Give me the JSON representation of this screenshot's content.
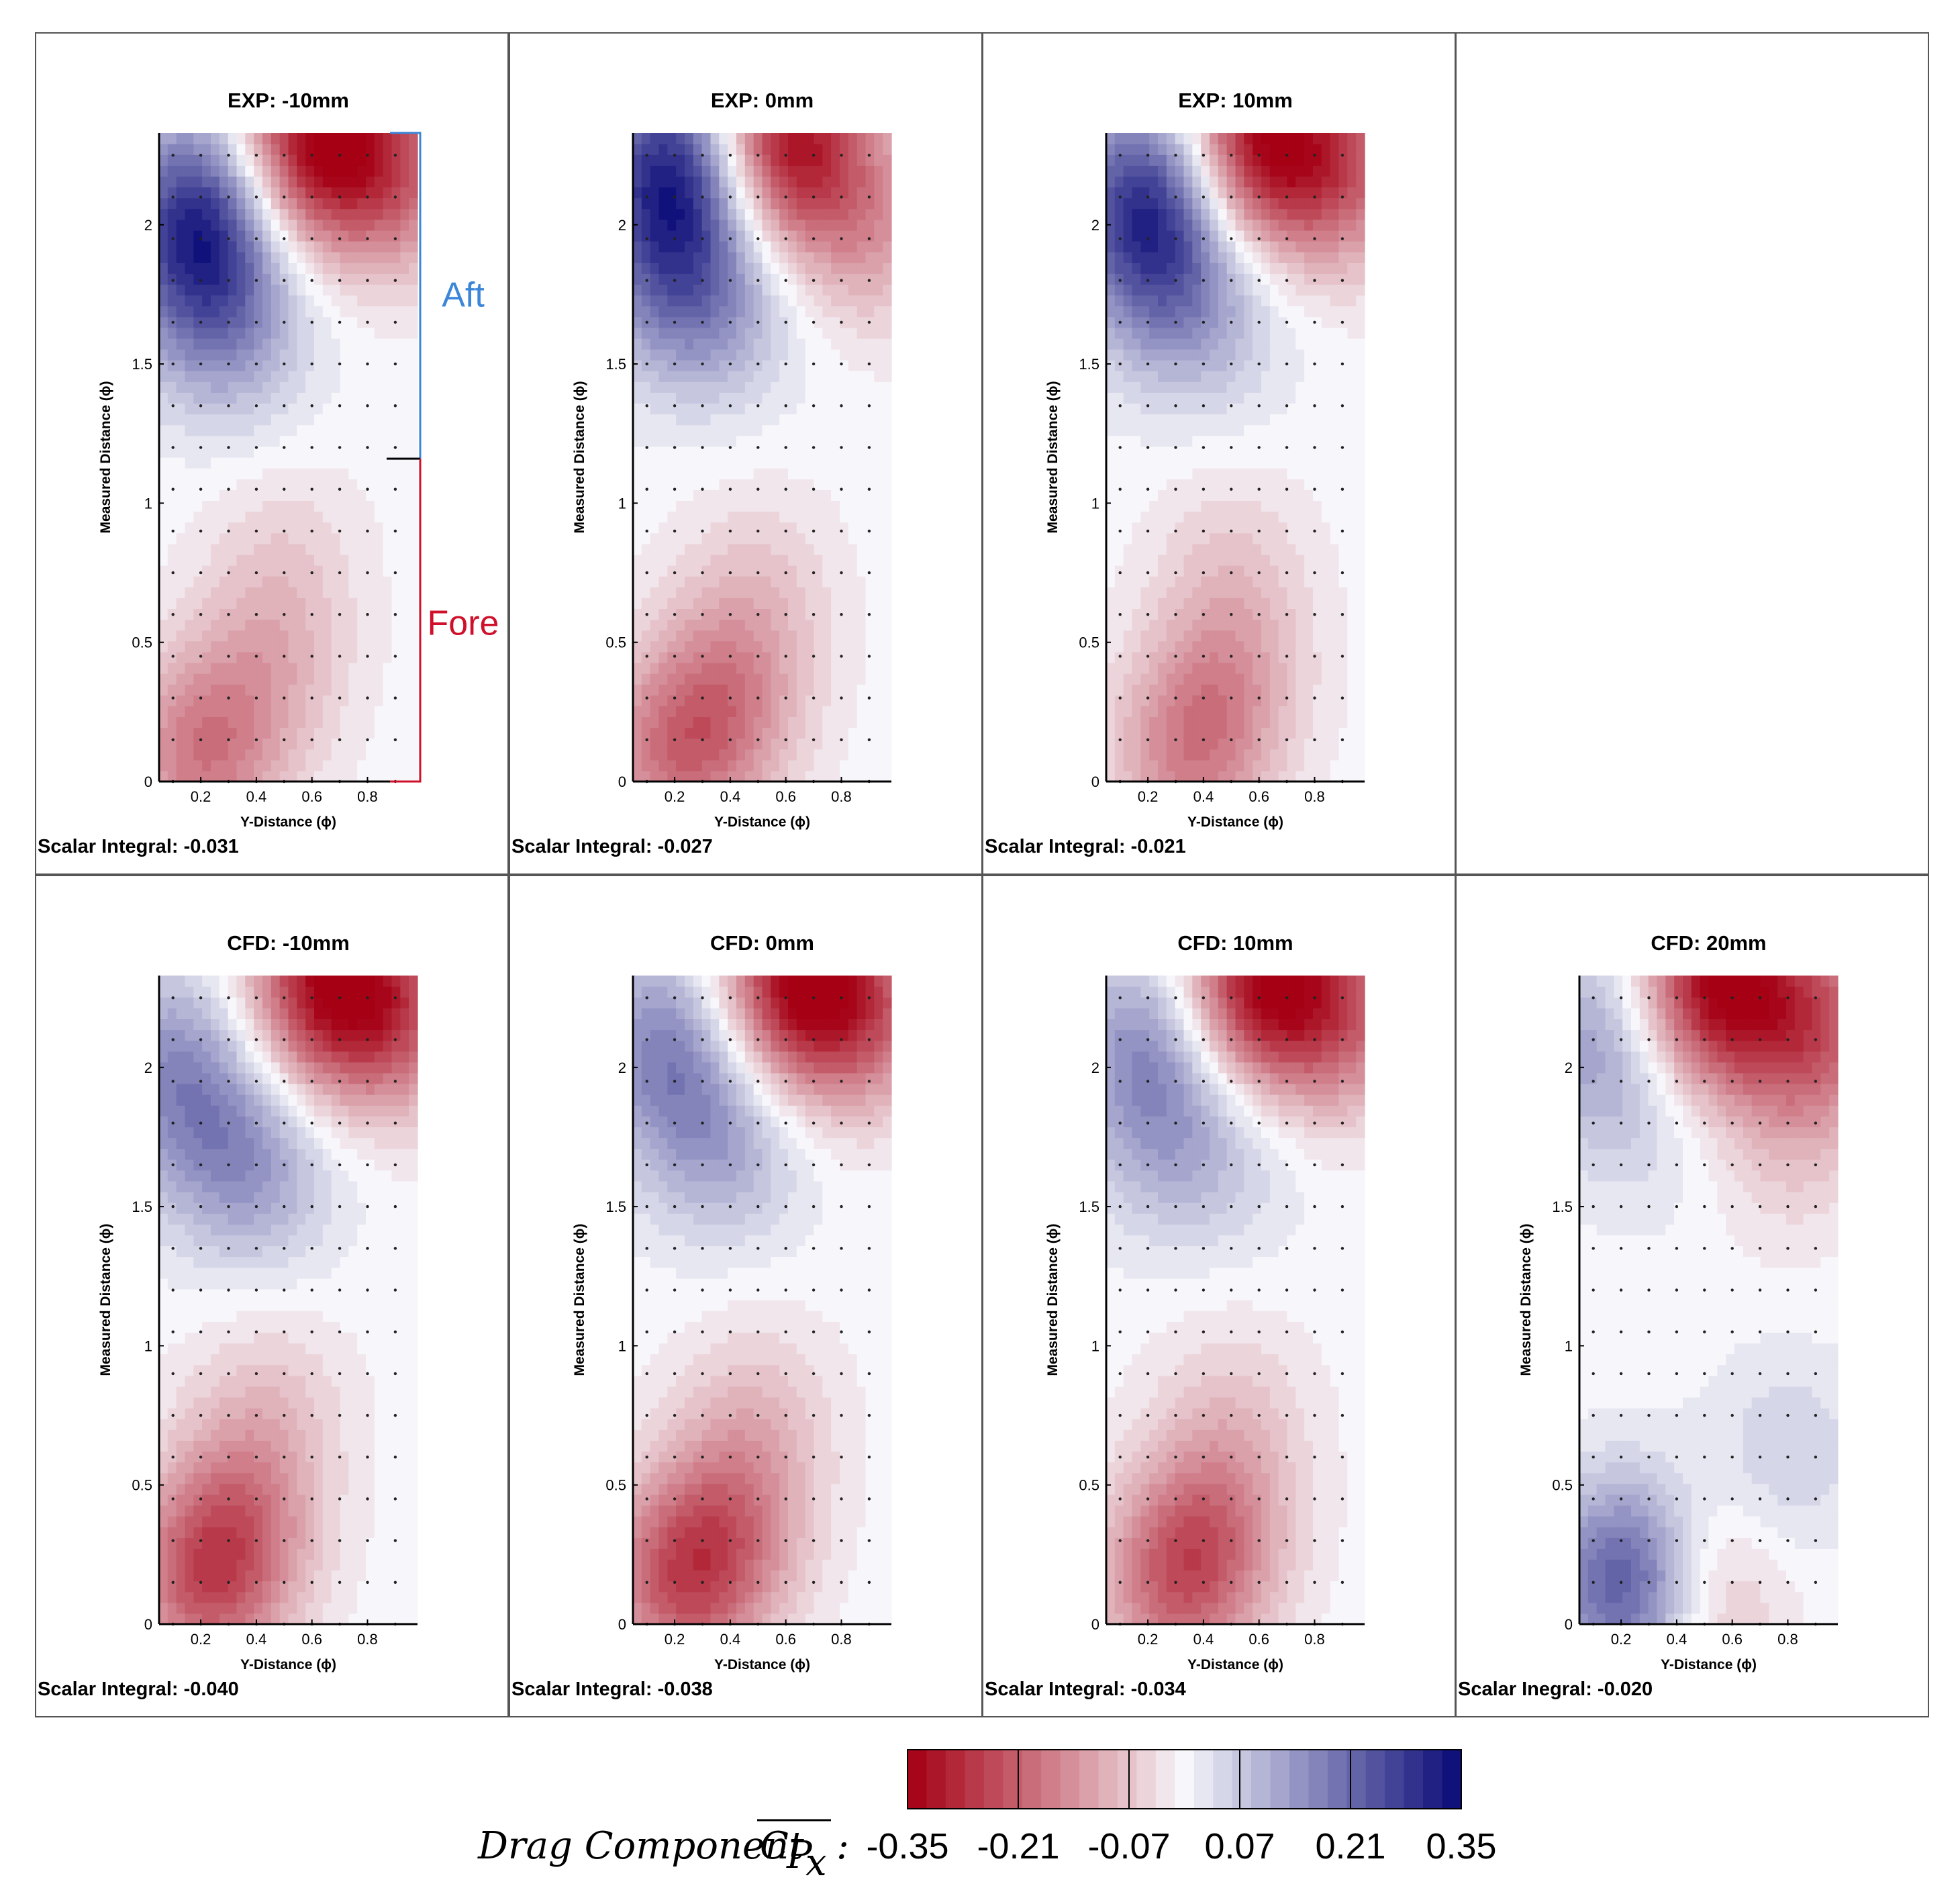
{
  "colors": {
    "negative_max": "#a50014",
    "neutral": "#f7f7fb",
    "positive_max": "#0c0c78",
    "aft_bracket": "#3b86d8",
    "fore_bracket": "#d0102a",
    "frame": "#555555"
  },
  "colorbar": {
    "label": "Drag Component",
    "symbol": "C",
    "symbol_sub": "P",
    "symbol_subsub": "x",
    "colon": ":",
    "ticks": [
      "-0.35",
      "-0.21",
      "-0.07",
      "0.07",
      "0.21",
      "0.35"
    ],
    "range": [
      -0.35,
      0.35
    ]
  },
  "annotations": {
    "aft_label": "Aft",
    "fore_label": "Fore"
  },
  "chart_data": [
    {
      "type": "heatmap",
      "title": "EXP: -10mm",
      "xlabel": "Y-Distance (ϕ)",
      "ylabel": "Measured Distance (ϕ)",
      "x_ticks": [
        "0.2",
        "0.4",
        "0.6",
        "0.8"
      ],
      "y_ticks": [
        "0",
        "0.5",
        "1",
        "1.5",
        "2"
      ],
      "xlim": [
        0.05,
        0.98
      ],
      "ylim": [
        0,
        2.33
      ],
      "scalar_label": "Scalar Integral: -0.031",
      "features": [
        {
          "x": 0.2,
          "y": 2.05,
          "value": 0.26
        },
        {
          "x": 0.2,
          "y": 1.75,
          "value": 0.12
        },
        {
          "x": 0.35,
          "y": 1.6,
          "value": 0.07
        },
        {
          "x": 0.6,
          "y": 2.3,
          "value": -0.33
        },
        {
          "x": 0.9,
          "y": 2.2,
          "value": -0.18
        },
        {
          "x": 0.2,
          "y": 0.1,
          "value": -0.17
        },
        {
          "x": 0.45,
          "y": 0.4,
          "value": -0.08
        },
        {
          "x": 0.5,
          "y": 0.8,
          "value": -0.05
        }
      ]
    },
    {
      "type": "heatmap",
      "title": "EXP: 0mm",
      "xlabel": "Y-Distance (ϕ)",
      "ylabel": "Measured Distance (ϕ)",
      "x_ticks": [
        "0.2",
        "0.4",
        "0.6",
        "0.8"
      ],
      "y_ticks": [
        "0",
        "0.5",
        "1",
        "1.5",
        "2"
      ],
      "xlim": [
        0.05,
        0.98
      ],
      "ylim": [
        0,
        2.33
      ],
      "scalar_label": "Scalar Integral: -0.027",
      "features": [
        {
          "x": 0.2,
          "y": 2.2,
          "value": 0.3
        },
        {
          "x": 0.2,
          "y": 1.8,
          "value": 0.15
        },
        {
          "x": 0.4,
          "y": 1.7,
          "value": 0.07
        },
        {
          "x": 0.6,
          "y": 2.3,
          "value": -0.33
        },
        {
          "x": 0.9,
          "y": 2.0,
          "value": -0.12
        },
        {
          "x": 0.2,
          "y": 0.1,
          "value": -0.16
        },
        {
          "x": 0.4,
          "y": 0.3,
          "value": -0.12
        },
        {
          "x": 0.5,
          "y": 0.7,
          "value": -0.06
        }
      ]
    },
    {
      "type": "heatmap",
      "title": "EXP: 10mm",
      "xlabel": "Y-Distance (ϕ)",
      "ylabel": "Measured Distance (ϕ)",
      "x_ticks": [
        "0.2",
        "0.4",
        "0.6",
        "0.8"
      ],
      "y_ticks": [
        "0",
        "0.5",
        "1",
        "1.5",
        "2"
      ],
      "xlim": [
        0.05,
        0.98
      ],
      "ylim": [
        0,
        2.33
      ],
      "scalar_label": "Scalar Integral: -0.021",
      "features": [
        {
          "x": 0.2,
          "y": 2.1,
          "value": 0.26
        },
        {
          "x": 0.25,
          "y": 1.8,
          "value": 0.12
        },
        {
          "x": 0.45,
          "y": 1.65,
          "value": 0.06
        },
        {
          "x": 0.6,
          "y": 2.3,
          "value": -0.32
        },
        {
          "x": 0.9,
          "y": 2.2,
          "value": -0.18
        },
        {
          "x": 0.35,
          "y": 0.1,
          "value": -0.15
        },
        {
          "x": 0.5,
          "y": 0.4,
          "value": -0.09
        },
        {
          "x": 0.5,
          "y": 0.8,
          "value": -0.05
        }
      ]
    },
    {
      "type": "heatmap",
      "title": "CFD: -10mm",
      "xlabel": "Y-Distance (ϕ)",
      "ylabel": "Measured Distance (ϕ)",
      "x_ticks": [
        "0.2",
        "0.4",
        "0.6",
        "0.8"
      ],
      "y_ticks": [
        "0",
        "0.5",
        "1",
        "1.5",
        "2"
      ],
      "xlim": [
        0.05,
        0.98
      ],
      "ylim": [
        0,
        2.33
      ],
      "scalar_label": "Scalar Integral: -0.040",
      "features": [
        {
          "x": 0.1,
          "y": 2.0,
          "value": 0.14
        },
        {
          "x": 0.3,
          "y": 1.7,
          "value": 0.1
        },
        {
          "x": 0.45,
          "y": 1.6,
          "value": 0.06
        },
        {
          "x": 0.65,
          "y": 2.3,
          "value": -0.3
        },
        {
          "x": 0.9,
          "y": 2.2,
          "value": -0.18
        },
        {
          "x": 0.22,
          "y": 0.15,
          "value": -0.2
        },
        {
          "x": 0.35,
          "y": 0.4,
          "value": -0.12
        },
        {
          "x": 0.45,
          "y": 0.8,
          "value": -0.06
        }
      ]
    },
    {
      "type": "heatmap",
      "title": "CFD: 0mm",
      "xlabel": "Y-Distance (ϕ)",
      "ylabel": "Measured Distance (ϕ)",
      "x_ticks": [
        "0.2",
        "0.4",
        "0.6",
        "0.8"
      ],
      "y_ticks": [
        "0",
        "0.5",
        "1",
        "1.5",
        "2"
      ],
      "xlim": [
        0.05,
        0.98
      ],
      "ylim": [
        0,
        2.33
      ],
      "scalar_label": "Scalar Integral: -0.038",
      "features": [
        {
          "x": 0.15,
          "y": 2.1,
          "value": 0.14
        },
        {
          "x": 0.3,
          "y": 1.8,
          "value": 0.09
        },
        {
          "x": 0.45,
          "y": 1.7,
          "value": 0.05
        },
        {
          "x": 0.65,
          "y": 2.3,
          "value": -0.33
        },
        {
          "x": 0.9,
          "y": 2.2,
          "value": -0.15
        },
        {
          "x": 0.22,
          "y": 0.15,
          "value": -0.2
        },
        {
          "x": 0.4,
          "y": 0.35,
          "value": -0.13
        },
        {
          "x": 0.5,
          "y": 0.75,
          "value": -0.07
        }
      ]
    },
    {
      "type": "heatmap",
      "title": "CFD: 10mm",
      "xlabel": "Y-Distance (ϕ)",
      "ylabel": "Measured Distance (ϕ)",
      "x_ticks": [
        "0.2",
        "0.4",
        "0.6",
        "0.8"
      ],
      "y_ticks": [
        "0",
        "0.5",
        "1",
        "1.5",
        "2"
      ],
      "xlim": [
        0.05,
        0.98
      ],
      "ylim": [
        0,
        2.33
      ],
      "scalar_label": "Scalar Integral: -0.034",
      "features": [
        {
          "x": 0.2,
          "y": 2.1,
          "value": 0.14
        },
        {
          "x": 0.25,
          "y": 1.75,
          "value": 0.08
        },
        {
          "x": 0.5,
          "y": 1.7,
          "value": 0.05
        },
        {
          "x": 0.6,
          "y": 2.3,
          "value": -0.32
        },
        {
          "x": 0.9,
          "y": 2.2,
          "value": -0.18
        },
        {
          "x": 0.3,
          "y": 0.15,
          "value": -0.18
        },
        {
          "x": 0.45,
          "y": 0.35,
          "value": -0.11
        },
        {
          "x": 0.5,
          "y": 0.75,
          "value": -0.06
        }
      ]
    },
    {
      "type": "heatmap",
      "title": "CFD: 20mm",
      "xlabel": "Y-Distance (ϕ)",
      "ylabel": "Measured Distance (ϕ)",
      "x_ticks": [
        "0.2",
        "0.4",
        "0.6",
        "0.8"
      ],
      "y_ticks": [
        "0",
        "0.5",
        "1",
        "1.5",
        "2"
      ],
      "xlim": [
        0.05,
        0.98
      ],
      "ylim": [
        0,
        2.33
      ],
      "scalar_label": "Scalar Inegral: -0.020",
      "features": [
        {
          "x": 0.1,
          "y": 2.1,
          "value": 0.12
        },
        {
          "x": 0.3,
          "y": 1.8,
          "value": 0.04
        },
        {
          "x": 0.22,
          "y": 0.15,
          "value": 0.25
        },
        {
          "x": 0.8,
          "y": 0.6,
          "value": 0.06
        },
        {
          "x": 0.55,
          "y": 2.3,
          "value": -0.34
        },
        {
          "x": 0.9,
          "y": 2.15,
          "value": -0.2
        },
        {
          "x": 0.8,
          "y": 1.7,
          "value": -0.05
        },
        {
          "x": 0.5,
          "y": 0.1,
          "value": -0.1
        }
      ]
    }
  ]
}
